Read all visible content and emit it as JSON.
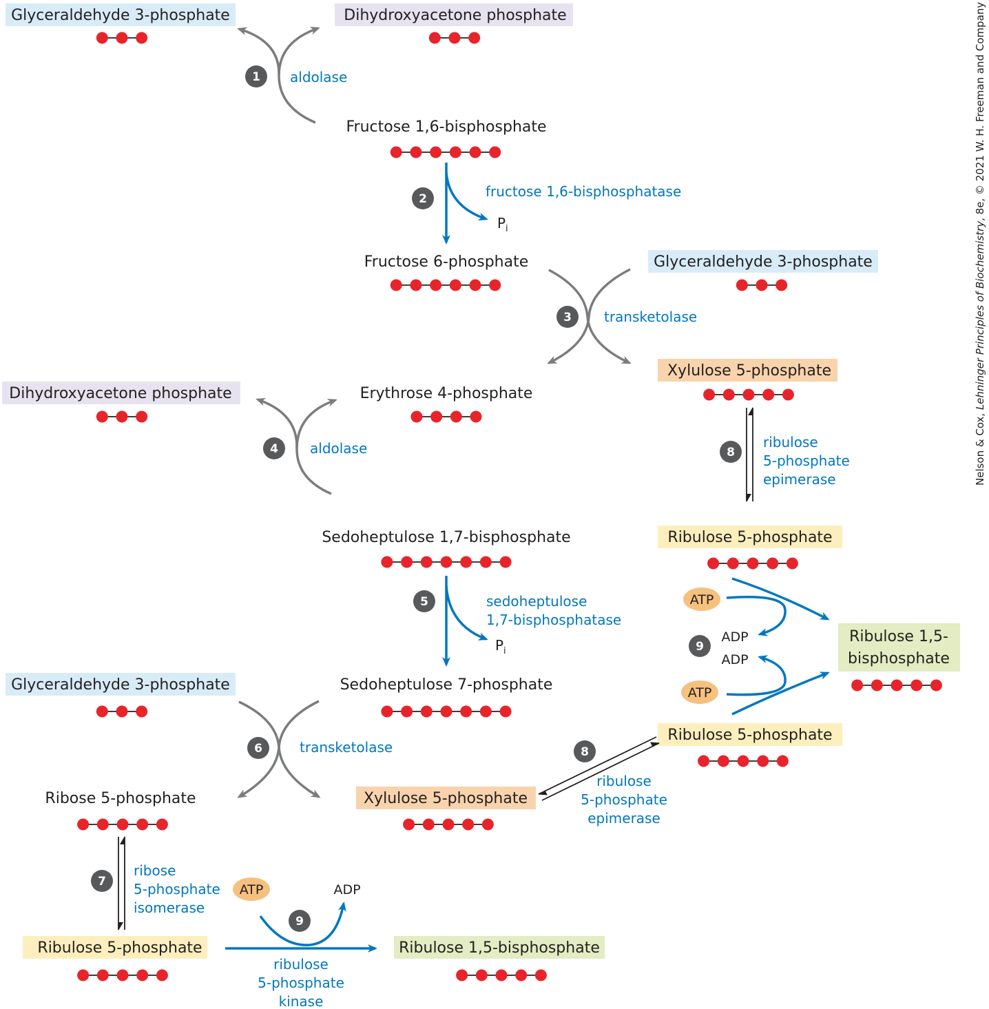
{
  "colors": {
    "blue_box": "#d8ecf8",
    "lavender_box": "#e6e2ef",
    "orange_box": "#f9d3ac",
    "yellow_box": "#fdefbd",
    "green_box": "#e3ecc2",
    "atom": "#e8242b",
    "enzyme_text": "#0077c0",
    "gray_arrow": "#7b7c7e",
    "step_badge": "#58595b",
    "atp_oval": "#f6c07e"
  },
  "compounds": {
    "gap_1": "Glyceraldehyde 3-phosphate",
    "dhap_1": "Dihydroxyacetone phosphate",
    "fbp": "Fructose 1,6-bisphosphate",
    "f6p": "Fructose 6-phosphate",
    "gap_2": "Glyceraldehyde 3-phosphate",
    "xu5p_1": "Xylulose 5-phosphate",
    "dhap_2": "Dihydroxyacetone phosphate",
    "e4p": "Erythrose 4-phosphate",
    "sbp": "Sedoheptulose 1,7-bisphosphate",
    "ru5p_1": "Ribulose 5-phosphate",
    "rubp_1_line1": "Ribulose 1,5-",
    "rubp_1_line2": "bisphosphate",
    "s7p": "Sedoheptulose 7-phosphate",
    "gap_3": "Glyceraldehyde 3-phosphate",
    "ru5p_2": "Ribulose 5-phosphate",
    "r5p": "Ribose 5-phosphate",
    "xu5p_2": "Xylulose 5-phosphate",
    "ru5p_3": "Ribulose 5-phosphate",
    "rubp_2": "Ribulose 1,5-bisphosphate"
  },
  "carbon_counts": {
    "gap_1": 3,
    "dhap_1": 3,
    "fbp": 6,
    "f6p": 6,
    "gap_2": 3,
    "xu5p_1": 5,
    "dhap_2": 3,
    "e4p": 4,
    "sbp": 7,
    "ru5p_1": 5,
    "rubp_1": 5,
    "s7p": 7,
    "gap_3": 3,
    "ru5p_2": 5,
    "r5p": 5,
    "xu5p_2": 5,
    "ru5p_3": 5,
    "rubp_2": 5
  },
  "enzymes": {
    "e1": "aldolase",
    "e2": "fructose 1,6-bisphosphatase",
    "e3": "transketolase",
    "e4": "aldolase",
    "e5_line1": "sedoheptulose",
    "e5_line2": "1,7-bisphosphatase",
    "e6": "transketolase",
    "e7_line1": "ribose",
    "e7_line2": "5-phosphate",
    "e7_line3": "isomerase",
    "e8a_line1": "ribulose",
    "e8a_line2": "5-phosphate",
    "e8a_line3": "epimerase",
    "e8b_line1": "ribulose",
    "e8b_line2": "5-phosphate",
    "e8b_line3": "epimerase",
    "e9_line1": "ribulose",
    "e9_line2": "5-phosphate",
    "e9_line3": "kinase"
  },
  "steps": {
    "s1": "1",
    "s2": "2",
    "s3": "3",
    "s4": "4",
    "s5": "5",
    "s6": "6",
    "s7": "7",
    "s8a": "8",
    "s8b": "8",
    "s9a": "9",
    "s9b": "9"
  },
  "cofactors": {
    "pi_1_main": "P",
    "pi_1_sub": "i",
    "pi_2_main": "P",
    "pi_2_sub": "i",
    "atp_1": "ATP",
    "adp_1": "ADP",
    "atp_2": "ATP",
    "adp_2": "ADP",
    "atp_3": "ATP",
    "adp_3": "ADP"
  },
  "credit": {
    "part1": "Nelson & Cox, ",
    "part2": "Lehninger Principles of Biochemistry",
    "part3": ", 8e, © 2021 W. H. Freeman and Company"
  }
}
